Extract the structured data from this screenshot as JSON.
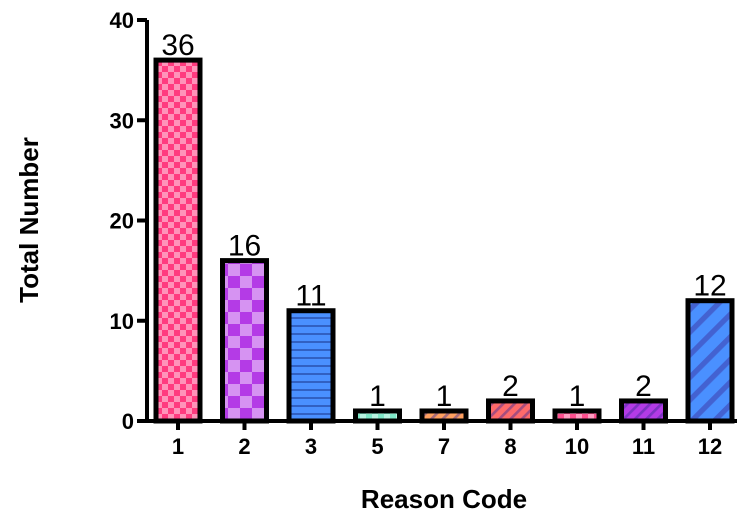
{
  "chart_data": {
    "type": "bar",
    "title": "",
    "xlabel": "Reason Code",
    "ylabel": "Total Number",
    "categories": [
      "1",
      "2",
      "3",
      "5",
      "7",
      "8",
      "10",
      "11",
      "12"
    ],
    "values": [
      36,
      16,
      11,
      1,
      1,
      2,
      1,
      2,
      12
    ],
    "data_labels": [
      "36",
      "16",
      "11",
      "1",
      "1",
      "2",
      "1",
      "2",
      "12"
    ],
    "ylim": [
      0,
      40
    ],
    "yticks": [
      "0",
      "10",
      "20",
      "30",
      "40"
    ],
    "grid": false,
    "legend": "none",
    "bar_colors": [
      "#ff3b7f",
      "#b43be6",
      "#4a90ff",
      "#7fe8c8",
      "#ffa060",
      "#ff6a6a",
      "#ff4f8f",
      "#b43be6",
      "#4a90ff"
    ],
    "bar_patterns": [
      "checker",
      "checker-large",
      "horizontal-lines",
      "checker",
      "diagonal",
      "diagonal",
      "checker",
      "diagonal",
      "diagonal-wide"
    ]
  }
}
